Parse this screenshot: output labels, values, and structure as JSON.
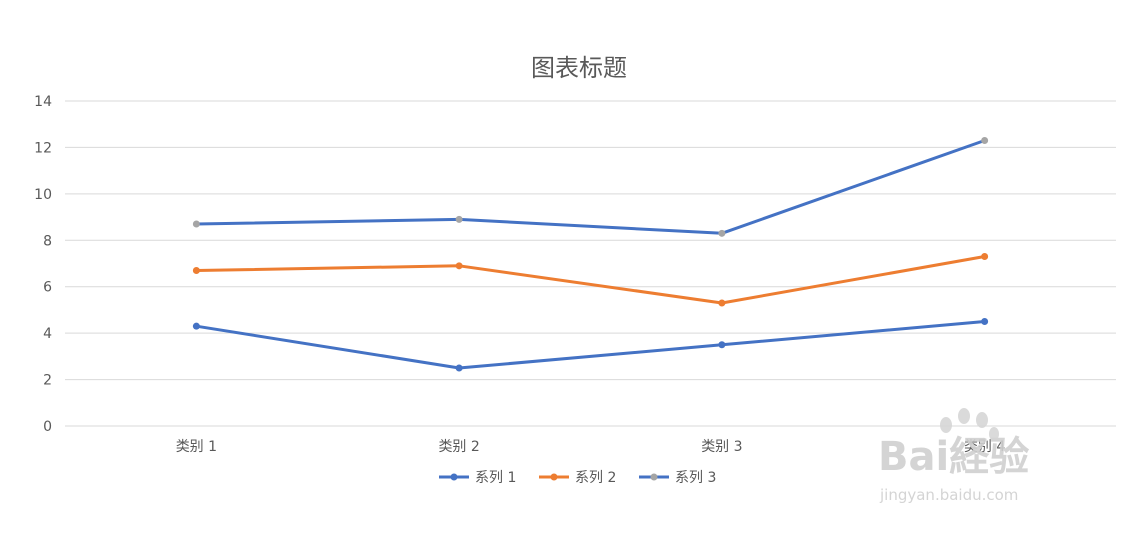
{
  "chart_data": {
    "type": "line",
    "title": "图表标题",
    "categories": [
      "类别 1",
      "类别 2",
      "类别 3",
      "类别 4"
    ],
    "ylim": [
      0,
      14
    ],
    "yticks": [
      0,
      2,
      4,
      6,
      8,
      10,
      12,
      14
    ],
    "grid": true,
    "legend_position": "bottom",
    "series": [
      {
        "name": "系列 1",
        "values": [
          4.3,
          2.5,
          3.5,
          4.5
        ],
        "line_color": "#4472C4",
        "marker_color": "#4472C4"
      },
      {
        "name": "系列 2",
        "values": [
          6.7,
          6.9,
          5.3,
          7.3
        ],
        "line_color": "#ED7D31",
        "marker_color": "#ED7D31"
      },
      {
        "name": "系列 3",
        "values": [
          8.7,
          8.9,
          8.3,
          12.3
        ],
        "line_color": "#4472C4",
        "marker_color": "#A5A5A5"
      }
    ]
  },
  "watermark": {
    "logo": "Bai経验",
    "url": "jingyan.baidu.com"
  }
}
